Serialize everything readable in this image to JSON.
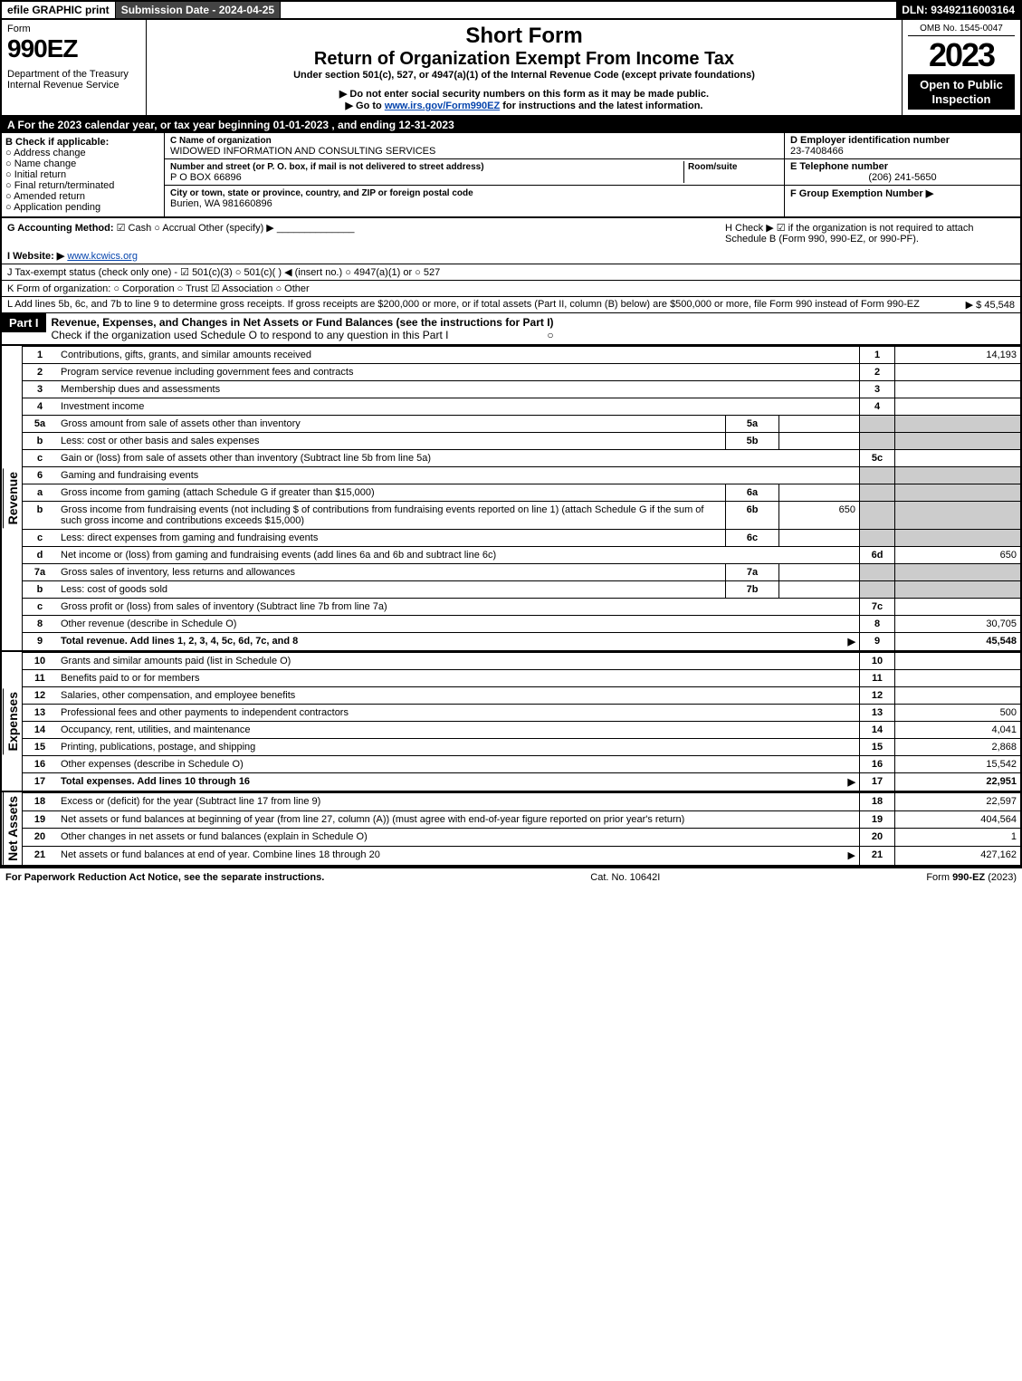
{
  "top": {
    "efile": "efile GRAPHIC print",
    "sub_date": "Submission Date - 2024-04-25",
    "dln": "DLN: 93492116003164"
  },
  "header": {
    "form_label": "Form",
    "form_num": "990EZ",
    "dept": "Department of the Treasury\nInternal Revenue Service",
    "short": "Short Form",
    "title": "Return of Organization Exempt From Income Tax",
    "sub": "Under section 501(c), 527, or 4947(a)(1) of the Internal Revenue Code (except private foundations)",
    "do_not": "▶ Do not enter social security numbers on this form as it may be made public.",
    "goto_pre": "▶ Go to ",
    "goto_link": "www.irs.gov/Form990EZ",
    "goto_post": " for instructions and the latest information.",
    "omb": "OMB No. 1545-0047",
    "year": "2023",
    "open": "Open to Public Inspection"
  },
  "sectionA": "A  For the 2023 calendar year, or tax year beginning 01-01-2023 , and ending 12-31-2023",
  "B": {
    "title": "B  Check if applicable:",
    "items": [
      "Address change",
      "Name change",
      "Initial return",
      "Final return/terminated",
      "Amended return",
      "Application pending"
    ]
  },
  "C": {
    "name_label": "C Name of organization",
    "name": "WIDOWED INFORMATION AND CONSULTING SERVICES",
    "street_label": "Number and street (or P. O. box, if mail is not delivered to street address)",
    "street": "P O BOX 66896",
    "room_label": "Room/suite",
    "city_label": "City or town, state or province, country, and ZIP or foreign postal code",
    "city": "Burien, WA  981660896"
  },
  "D": {
    "label": "D Employer identification number",
    "val": "23-7408466"
  },
  "E": {
    "label": "E Telephone number",
    "val": "(206) 241-5650"
  },
  "F": {
    "label": "F Group Exemption Number  ▶",
    "val": ""
  },
  "G": {
    "label": "G Accounting Method:",
    "cash": "Cash",
    "accrual": "Accrual",
    "other": "Other (specify) ▶"
  },
  "H": {
    "text": "H   Check ▶ ☑ if the organization is not required to attach Schedule B (Form 990, 990-EZ, or 990-PF)."
  },
  "I": {
    "label": "I Website: ▶",
    "val": "www.kcwics.org"
  },
  "J": {
    "text": "J Tax-exempt status (check only one) - ☑ 501(c)(3)  ○ 501(c)(  ) ◀ (insert no.)  ○ 4947(a)(1) or  ○ 527"
  },
  "K": {
    "text": "K Form of organization:   ○ Corporation   ○ Trust   ☑ Association   ○ Other"
  },
  "L": {
    "text": "L Add lines 5b, 6c, and 7b to line 9 to determine gross receipts. If gross receipts are $200,000 or more, or if total assets (Part II, column (B) below) are $500,000 or more, file Form 990 instead of Form 990-EZ",
    "amount": "▶ $ 45,548"
  },
  "part1": {
    "label": "Part I",
    "title": "Revenue, Expenses, and Changes in Net Assets or Fund Balances (see the instructions for Part I)",
    "check": "Check if the organization used Schedule O to respond to any question in this Part I",
    "check_val": "○"
  },
  "revenue": {
    "label": "Revenue",
    "lines": [
      {
        "n": "1",
        "desc": "Contributions, gifts, grants, and similar amounts received",
        "ln": "1",
        "amt": "14,193"
      },
      {
        "n": "2",
        "desc": "Program service revenue including government fees and contracts",
        "ln": "2",
        "amt": ""
      },
      {
        "n": "3",
        "desc": "Membership dues and assessments",
        "ln": "3",
        "amt": ""
      },
      {
        "n": "4",
        "desc": "Investment income",
        "ln": "4",
        "amt": ""
      },
      {
        "n": "5a",
        "desc": "Gross amount from sale of assets other than inventory",
        "sub": "5a",
        "subval": ""
      },
      {
        "n": "b",
        "desc": "Less: cost or other basis and sales expenses",
        "sub": "5b",
        "subval": ""
      },
      {
        "n": "c",
        "desc": "Gain or (loss) from sale of assets other than inventory (Subtract line 5b from line 5a)",
        "ln": "5c",
        "amt": ""
      },
      {
        "n": "6",
        "desc": "Gaming and fundraising events"
      },
      {
        "n": "a",
        "desc": "Gross income from gaming (attach Schedule G if greater than $15,000)",
        "sub": "6a",
        "subval": ""
      },
      {
        "n": "b",
        "desc": "Gross income from fundraising events (not including $                    of contributions from fundraising events reported on line 1) (attach Schedule G if the sum of such gross income and contributions exceeds $15,000)",
        "sub": "6b",
        "subval": "650"
      },
      {
        "n": "c",
        "desc": "Less: direct expenses from gaming and fundraising events",
        "sub": "6c",
        "subval": ""
      },
      {
        "n": "d",
        "desc": "Net income or (loss) from gaming and fundraising events (add lines 6a and 6b and subtract line 6c)",
        "ln": "6d",
        "amt": "650"
      },
      {
        "n": "7a",
        "desc": "Gross sales of inventory, less returns and allowances",
        "sub": "7a",
        "subval": ""
      },
      {
        "n": "b",
        "desc": "Less: cost of goods sold",
        "sub": "7b",
        "subval": ""
      },
      {
        "n": "c",
        "desc": "Gross profit or (loss) from sales of inventory (Subtract line 7b from line 7a)",
        "ln": "7c",
        "amt": ""
      },
      {
        "n": "8",
        "desc": "Other revenue (describe in Schedule O)",
        "ln": "8",
        "amt": "30,705"
      },
      {
        "n": "9",
        "desc": "Total revenue. Add lines 1, 2, 3, 4, 5c, 6d, 7c, and 8",
        "ln": "9",
        "amt": "45,548",
        "bold": true,
        "arrow": true
      }
    ]
  },
  "expenses": {
    "label": "Expenses",
    "lines": [
      {
        "n": "10",
        "desc": "Grants and similar amounts paid (list in Schedule O)",
        "ln": "10",
        "amt": ""
      },
      {
        "n": "11",
        "desc": "Benefits paid to or for members",
        "ln": "11",
        "amt": ""
      },
      {
        "n": "12",
        "desc": "Salaries, other compensation, and employee benefits",
        "ln": "12",
        "amt": ""
      },
      {
        "n": "13",
        "desc": "Professional fees and other payments to independent contractors",
        "ln": "13",
        "amt": "500"
      },
      {
        "n": "14",
        "desc": "Occupancy, rent, utilities, and maintenance",
        "ln": "14",
        "amt": "4,041"
      },
      {
        "n": "15",
        "desc": "Printing, publications, postage, and shipping",
        "ln": "15",
        "amt": "2,868"
      },
      {
        "n": "16",
        "desc": "Other expenses (describe in Schedule O)",
        "ln": "16",
        "amt": "15,542"
      },
      {
        "n": "17",
        "desc": "Total expenses. Add lines 10 through 16",
        "ln": "17",
        "amt": "22,951",
        "bold": true,
        "arrow": true
      }
    ]
  },
  "netassets": {
    "label": "Net Assets",
    "lines": [
      {
        "n": "18",
        "desc": "Excess or (deficit) for the year (Subtract line 17 from line 9)",
        "ln": "18",
        "amt": "22,597"
      },
      {
        "n": "19",
        "desc": "Net assets or fund balances at beginning of year (from line 27, column (A)) (must agree with end-of-year figure reported on prior year's return)",
        "ln": "19",
        "amt": "404,564"
      },
      {
        "n": "20",
        "desc": "Other changes in net assets or fund balances (explain in Schedule O)",
        "ln": "20",
        "amt": "1"
      },
      {
        "n": "21",
        "desc": "Net assets or fund balances at end of year. Combine lines 18 through 20",
        "ln": "21",
        "amt": "427,162",
        "arrow": true
      }
    ]
  },
  "footer": {
    "left": "For Paperwork Reduction Act Notice, see the separate instructions.",
    "mid": "Cat. No. 10642I",
    "right": "Form 990-EZ (2023)"
  }
}
